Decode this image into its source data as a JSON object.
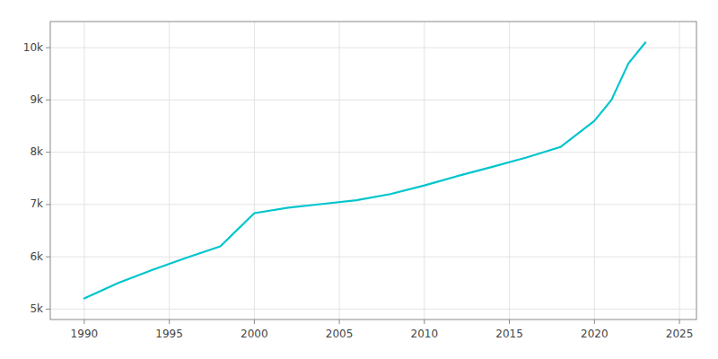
{
  "chart_data": {
    "type": "line",
    "x": [
      1990,
      1992,
      1994,
      1996,
      1998,
      2000,
      2002,
      2004,
      2006,
      2008,
      2010,
      2012,
      2014,
      2016,
      2018,
      2020,
      2021,
      2022,
      2023
    ],
    "values": [
      5203,
      5500,
      5750,
      5980,
      6200,
      6835,
      6940,
      7010,
      7080,
      7200,
      7365,
      7550,
      7720,
      7900,
      8100,
      8600,
      9000,
      9700,
      10100
    ],
    "color": "#00c5cd",
    "xlim": [
      1988,
      2026
    ],
    "xticks": [
      1990,
      1995,
      2000,
      2005,
      2010,
      2015,
      2020,
      2025
    ],
    "ylim": [
      4800,
      10500
    ],
    "yticks": [
      {
        "value": 5000,
        "label": "5k"
      },
      {
        "value": 6000,
        "label": "6k"
      },
      {
        "value": 7000,
        "label": "7k"
      },
      {
        "value": 8000,
        "label": "8k"
      },
      {
        "value": 9000,
        "label": "9k"
      },
      {
        "value": 10000,
        "label": "10k"
      }
    ],
    "grid": true
  }
}
